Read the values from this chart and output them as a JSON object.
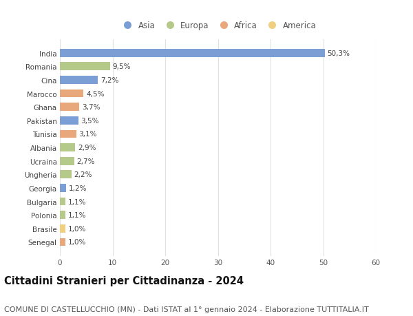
{
  "countries": [
    "Senegal",
    "Brasile",
    "Polonia",
    "Bulgaria",
    "Georgia",
    "Ungheria",
    "Ucraina",
    "Albania",
    "Tunisia",
    "Pakistan",
    "Ghana",
    "Marocco",
    "Cina",
    "Romania",
    "India"
  ],
  "values": [
    1.0,
    1.0,
    1.1,
    1.1,
    1.2,
    2.2,
    2.7,
    2.9,
    3.1,
    3.5,
    3.7,
    4.5,
    7.2,
    9.5,
    50.3
  ],
  "labels": [
    "1,0%",
    "1,0%",
    "1,1%",
    "1,1%",
    "1,2%",
    "2,2%",
    "2,7%",
    "2,9%",
    "3,1%",
    "3,5%",
    "3,7%",
    "4,5%",
    "7,2%",
    "9,5%",
    "50,3%"
  ],
  "continents": [
    "Africa",
    "America",
    "Europa",
    "Europa",
    "Asia",
    "Europa",
    "Europa",
    "Europa",
    "Africa",
    "Asia",
    "Africa",
    "Africa",
    "Asia",
    "Europa",
    "Asia"
  ],
  "colors": {
    "Asia": "#7b9fd4",
    "Europa": "#b5c98a",
    "Africa": "#e8a87c",
    "America": "#f0d080"
  },
  "legend_order": [
    "Asia",
    "Europa",
    "Africa",
    "America"
  ],
  "title": "Cittadini Stranieri per Cittadinanza - 2024",
  "subtitle": "COMUNE DI CASTELLUCCHIO (MN) - Dati ISTAT al 1° gennaio 2024 - Elaborazione TUTTITALIA.IT",
  "xlim": [
    0,
    60
  ],
  "xticks": [
    0,
    10,
    20,
    30,
    40,
    50,
    60
  ],
  "background_color": "#ffffff",
  "grid_color": "#e0e0e0",
  "bar_height": 0.6,
  "title_fontsize": 10.5,
  "subtitle_fontsize": 8,
  "label_fontsize": 7.5,
  "tick_fontsize": 7.5,
  "legend_fontsize": 8.5
}
